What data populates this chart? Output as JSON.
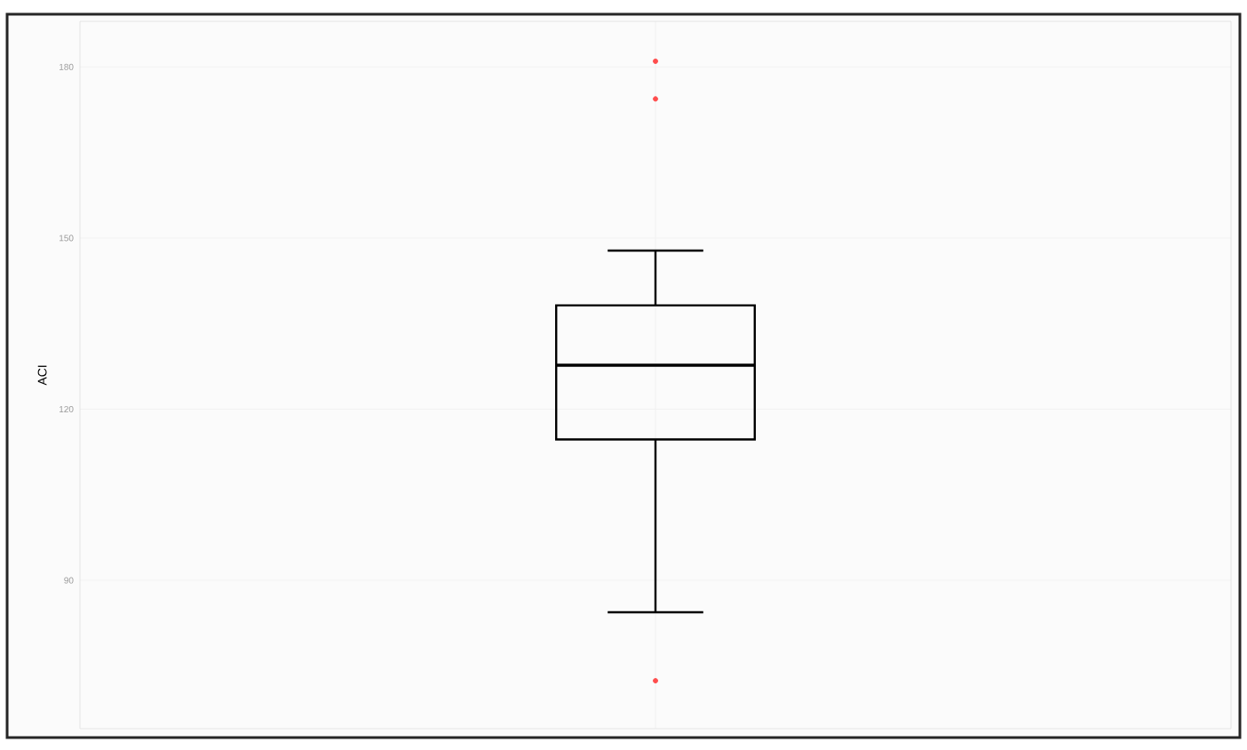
{
  "chart_data": {
    "type": "box",
    "ylabel": "ACI",
    "categories": [
      null
    ],
    "color": "#000000",
    "boxes": [
      {
        "low": 84.4,
        "q1": 114.7,
        "median": 127.7,
        "q3": 138.2,
        "high": 147.8,
        "outliers": [
          181,
          174.4,
          72.4
        ]
      }
    ],
    "ylim": [
      64,
      188
    ],
    "yticks": [
      90,
      120,
      150,
      180
    ],
    "grid": true
  }
}
